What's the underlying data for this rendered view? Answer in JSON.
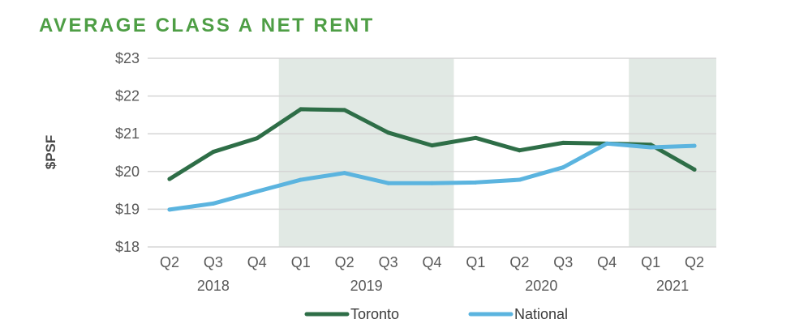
{
  "chart_data": {
    "type": "line",
    "title": "AVERAGE CLASS A NET RENT",
    "ylabel": "$PSF",
    "xlabel": "",
    "ylim": [
      18,
      23
    ],
    "yticks": [
      18,
      19,
      20,
      21,
      22,
      23
    ],
    "ytick_labels": [
      "$18",
      "$19",
      "$20",
      "$21",
      "$22",
      "$23"
    ],
    "categories": [
      "Q2",
      "Q3",
      "Q4",
      "Q1",
      "Q2",
      "Q3",
      "Q4",
      "Q1",
      "Q2",
      "Q3",
      "Q4",
      "Q1",
      "Q2"
    ],
    "year_groups": [
      {
        "label": "2018",
        "start": 0,
        "end": 2
      },
      {
        "label": "2019",
        "start": 3,
        "end": 6
      },
      {
        "label": "2020",
        "start": 7,
        "end": 10
      },
      {
        "label": "2021",
        "start": 11,
        "end": 12
      }
    ],
    "shaded_years": [
      "2019",
      "2021"
    ],
    "series": [
      {
        "name": "Toronto",
        "color": "#2e6e47",
        "values": [
          19.8,
          20.52,
          20.88,
          21.65,
          21.63,
          21.03,
          20.69,
          20.89,
          20.56,
          20.76,
          20.74,
          20.71,
          20.05
        ]
      },
      {
        "name": "National",
        "color": "#5bb4df",
        "values": [
          18.99,
          19.15,
          19.47,
          19.78,
          19.96,
          19.69,
          19.69,
          19.71,
          19.78,
          20.11,
          20.74,
          20.64,
          20.68
        ]
      }
    ],
    "grid": true,
    "legend": "bottom-center",
    "shade_color": "#e1e9e4",
    "grid_color": "#d5d5d5"
  }
}
